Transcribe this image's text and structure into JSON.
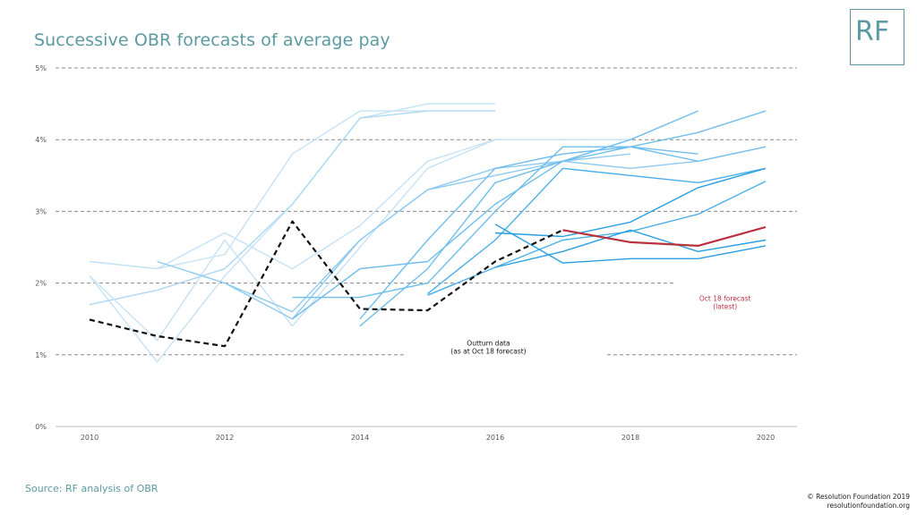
{
  "header": {
    "title": "Successive OBR forecasts of average pay",
    "logo_text": "RF"
  },
  "footer": {
    "source": "Source: RF analysis of OBR",
    "credit_line1": "© Resolution Foundation 2019",
    "credit_line2": "resolutionfoundation.org"
  },
  "colors": {
    "title": "#5b9aa0",
    "outturn": "#111111",
    "latest": "#b8313f",
    "forecast_shades": [
      "#c6e2f6",
      "#aed7f2",
      "#8fcaf0",
      "#6fbdec",
      "#4aaeea",
      "#2a9fe2"
    ],
    "grid": "#888888"
  },
  "chart_data": {
    "type": "line",
    "x_ticks": [
      2010,
      2012,
      2014,
      2016,
      2018,
      2020
    ],
    "y_ticks": [
      "0%",
      "1%",
      "2%",
      "3%",
      "4%",
      "5%"
    ],
    "xlim": [
      2010,
      2020
    ],
    "ylim": [
      0,
      5
    ],
    "grid": "horizontal dashed",
    "annotations": [
      {
        "text_lines": [
          "Outturn data",
          "(as at Oct 18 forecast)"
        ],
        "x": 2015.9,
        "y": 1.13,
        "color": "#111111"
      },
      {
        "text_lines": [
          "Oct 18 forecast",
          "(latest)"
        ],
        "x": 2019.4,
        "y": 1.75,
        "color": "#b8313f"
      }
    ],
    "series": [
      {
        "x": [
          2010,
          2011,
          2012,
          2013,
          2014,
          2015
        ],
        "y": [
          2.3,
          2.2,
          2.4,
          3.8,
          4.4,
          4.4
        ],
        "shade": 0
      },
      {
        "x": [
          2010,
          2011,
          2012,
          2013,
          2014,
          2015,
          2016
        ],
        "y": [
          2.1,
          0.9,
          2.1,
          3.1,
          4.3,
          4.5,
          4.5
        ],
        "shade": 0
      },
      {
        "x": [
          2010,
          2011,
          2012,
          2013,
          2014,
          2015,
          2016
        ],
        "y": [
          1.7,
          1.9,
          2.2,
          3.1,
          4.3,
          4.4,
          4.4
        ],
        "shade": 1
      },
      {
        "x": [
          2010,
          2011,
          2012,
          2013,
          2014,
          2015,
          2016,
          2017
        ],
        "y": [
          2.3,
          2.2,
          2.7,
          2.2,
          2.8,
          3.7,
          4.0,
          4.0
        ],
        "shade": 0
      },
      {
        "x": [
          2010,
          2011,
          2012,
          2013,
          2014,
          2015,
          2016,
          2017,
          2018
        ],
        "y": [
          2.1,
          1.2,
          2.6,
          1.4,
          2.5,
          3.6,
          4.0,
          4.0,
          4.0
        ],
        "shade": 0
      },
      {
        "x": [
          2011,
          2012,
          2013,
          2014,
          2015,
          2016,
          2017,
          2018
        ],
        "y": [
          2.3,
          2.0,
          1.6,
          2.6,
          3.3,
          3.5,
          3.7,
          3.8
        ],
        "shade": 2
      },
      {
        "x": [
          2012,
          2013,
          2014,
          2015,
          2016,
          2017,
          2018,
          2019
        ],
        "y": [
          2.0,
          1.5,
          2.6,
          3.3,
          3.6,
          3.7,
          3.6,
          3.7
        ],
        "shade": 2
      },
      {
        "x": [
          2013,
          2014,
          2015,
          2016,
          2017,
          2018,
          2019
        ],
        "y": [
          1.8,
          1.8,
          2.0,
          3.0,
          3.9,
          3.9,
          3.8
        ],
        "shade": 3
      },
      {
        "x": [
          2013,
          2014,
          2015,
          2016,
          2017,
          2018,
          2019
        ],
        "y": [
          1.5,
          2.2,
          2.3,
          3.1,
          3.7,
          4.0,
          4.4
        ],
        "shade": 3
      },
      {
        "x": [
          2014,
          2015,
          2016,
          2017,
          2018,
          2019,
          2020
        ],
        "y": [
          1.4,
          2.2,
          3.4,
          3.7,
          3.9,
          4.1,
          4.4
        ],
        "shade": 3
      },
      {
        "x": [
          2014,
          2015,
          2016,
          2017,
          2018,
          2019,
          2020
        ],
        "y": [
          1.5,
          2.6,
          3.6,
          3.8,
          3.9,
          3.7,
          3.9
        ],
        "shade": 3
      },
      {
        "x": [
          2015,
          2016,
          2017,
          2018,
          2019,
          2020
        ],
        "y": [
          1.85,
          2.6,
          3.6,
          3.5,
          3.4,
          3.6
        ],
        "shade": 4
      },
      {
        "x": [
          2015,
          2016,
          2017,
          2018,
          2019,
          2020
        ],
        "y": [
          1.83,
          2.22,
          2.6,
          2.72,
          2.96,
          3.42
        ],
        "shade": 4
      },
      {
        "x": [
          2016,
          2017,
          2018,
          2019,
          2020
        ],
        "y": [
          2.7,
          2.65,
          2.85,
          3.33,
          3.6
        ],
        "shade": 5
      },
      {
        "x": [
          2016,
          2017,
          2018,
          2019,
          2020
        ],
        "y": [
          2.82,
          2.28,
          2.34,
          2.34,
          2.52
        ],
        "shade": 5
      },
      {
        "x": [
          2016,
          2017,
          2018,
          2019,
          2020
        ],
        "y": [
          2.22,
          2.44,
          2.74,
          2.44,
          2.6
        ],
        "shade": 5
      },
      {
        "name": "Oct 18 forecast (latest)",
        "x": [
          2017,
          2018,
          2019,
          2020
        ],
        "y": [
          2.74,
          2.57,
          2.52,
          2.78
        ],
        "role": "latest"
      },
      {
        "name": "Outturn data (as at Oct 18 forecast)",
        "x": [
          2010,
          2011,
          2012,
          2013,
          2014,
          2015,
          2016,
          2017
        ],
        "y": [
          1.49,
          1.26,
          1.12,
          2.86,
          1.64,
          1.62,
          2.3,
          2.74
        ],
        "role": "outturn"
      }
    ]
  }
}
